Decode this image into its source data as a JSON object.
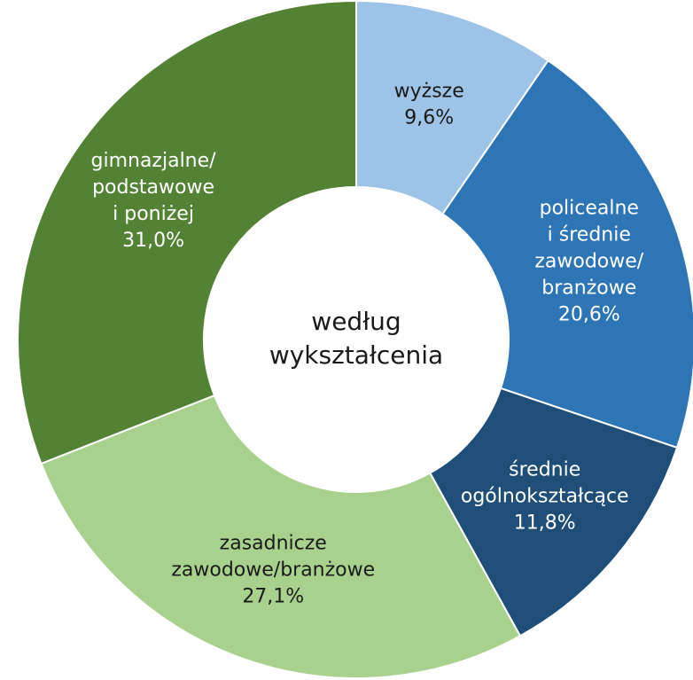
{
  "chart_data": {
    "type": "donut",
    "title": "według\nwykształcenia",
    "categories": [
      "wyższe",
      "policealne\ni średnie\nzawodowe/\nbranżowe",
      "średnie\nogólnokształcące",
      "zasadnicze\nzawodowe/branżowe",
      "gimnazjalne/\npodstawowe\ni poniżej"
    ],
    "values": [
      9.6,
      20.6,
      11.8,
      27.1,
      31.0
    ],
    "value_labels": [
      "9,6%",
      "20,6%",
      "11,8%",
      "27,1%",
      "31,0%"
    ],
    "colors": [
      "#9dc3e6",
      "#2e75b6",
      "#1f4e79",
      "#a9d18e",
      "#548235"
    ],
    "label_colors": [
      "#1a1a1a",
      "#ffffff",
      "#ffffff",
      "#1a1a1a",
      "#ffffff"
    ]
  }
}
